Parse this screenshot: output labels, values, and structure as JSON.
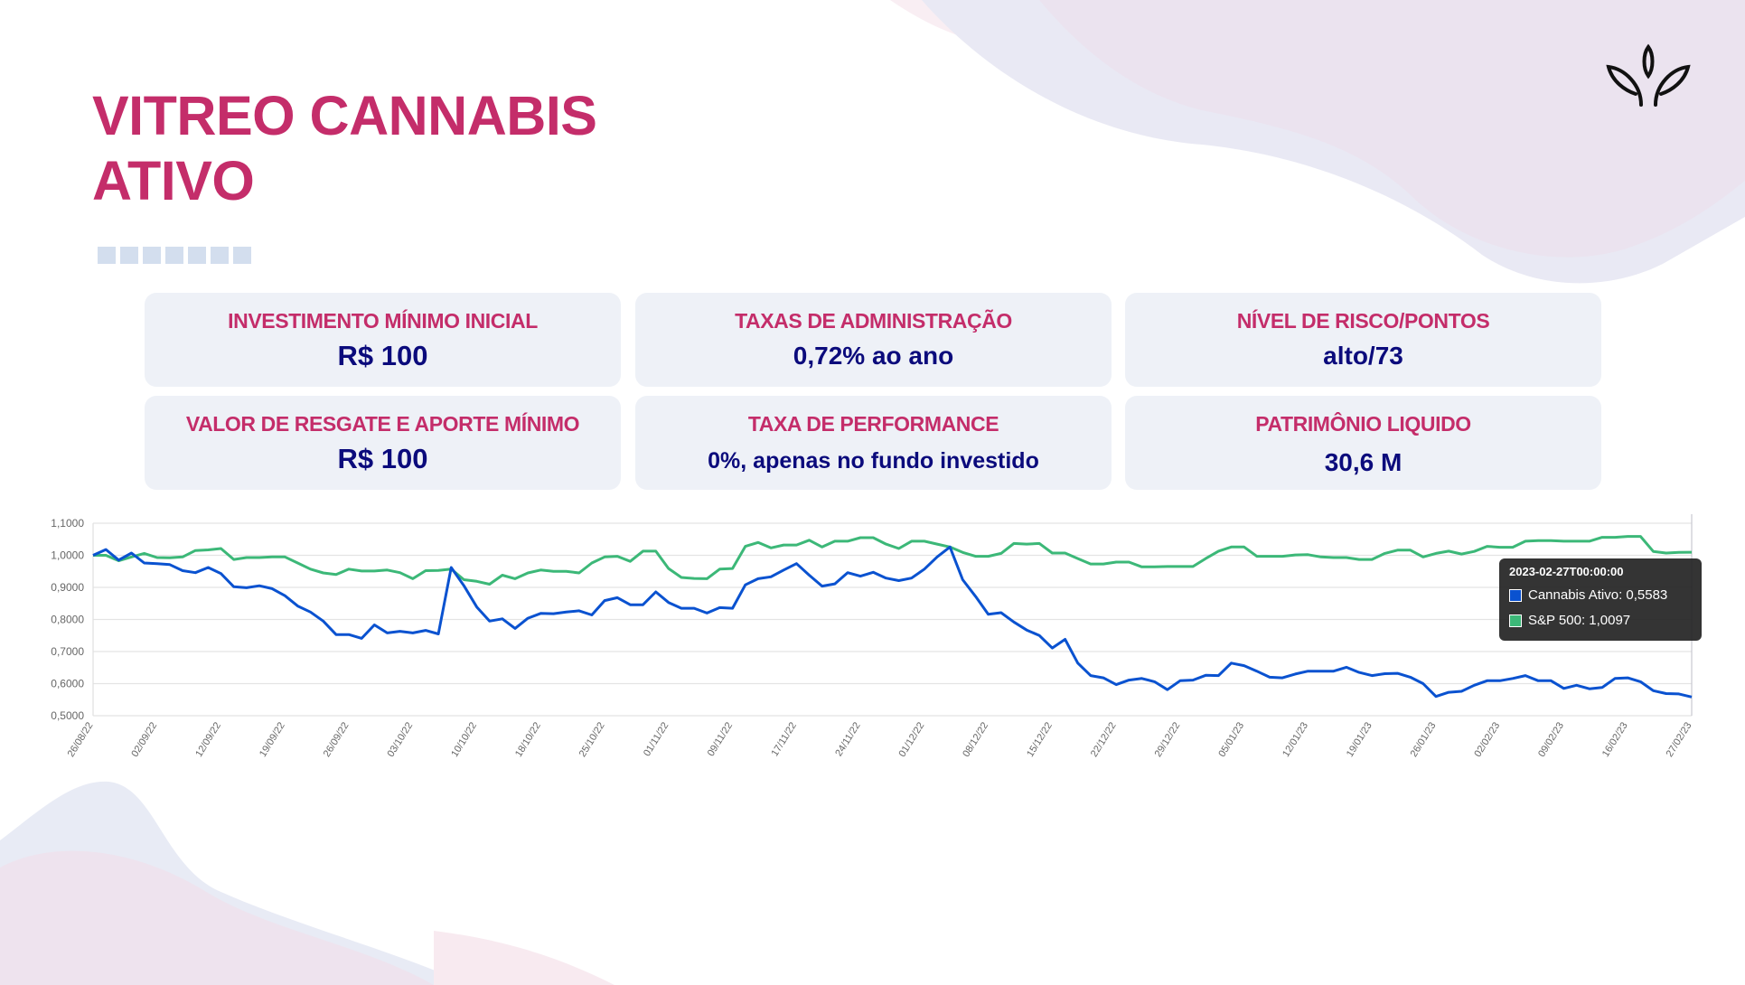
{
  "header": {
    "title_line1": "VITREO CANNABIS",
    "title_line2": "ATIVO"
  },
  "cards": [
    {
      "label": "INVESTIMENTO MÍNIMO  INICIAL",
      "value": "R$ 100"
    },
    {
      "label": "TAXAS DE ADMINISTRAÇÃO",
      "value": "0,72% ao ano"
    },
    {
      "label": "NÍVEL DE RISCO/PONTOS",
      "value": "alto/73"
    },
    {
      "label": "VALOR DE RESGATE E APORTE MÍNIMO",
      "value": "R$ 100"
    },
    {
      "label": "TAXA DE PERFORMANCE",
      "value": "0%, apenas no fundo investido"
    },
    {
      "label": "PATRIMÔNIO LIQUIDO",
      "value": "30,6 M"
    }
  ],
  "colors": {
    "accent": "#c42d6a",
    "value": "#0b0b7c",
    "card_bg": "#eef1f7",
    "cannabis": "#0a52d0",
    "sp500": "#3cb878"
  },
  "chart_data": {
    "type": "line",
    "title": "",
    "xlabel": "",
    "ylabel": "",
    "ylim": [
      0.5,
      1.1
    ],
    "yticks": [
      1.1,
      1.0,
      0.9,
      0.8,
      0.7,
      0.6,
      0.5
    ],
    "ytick_labels": [
      "1,1000",
      "1,0000",
      "0,9000",
      "0,8000",
      "0,7000",
      "0,6000",
      "0,5000"
    ],
    "grid": true,
    "x_tick_every": 5,
    "x_tick_labels": [
      "26/08/22",
      "02/09/22",
      "12/09/22",
      "19/09/22",
      "26/09/22",
      "03/10/22",
      "10/10/22",
      "18/10/22",
      "25/10/22",
      "01/11/22",
      "09/11/22",
      "17/11/22",
      "24/11/22",
      "01/12/22",
      "08/12/22",
      "15/12/22",
      "22/12/22",
      "29/12/22",
      "05/01/23",
      "12/01/23",
      "19/01/23",
      "26/01/23",
      "02/02/23",
      "09/02/23",
      "16/02/23",
      "27/02/23"
    ],
    "series": [
      {
        "name": "Cannabis Ativo",
        "color": "#0a52d0",
        "values": [
          1.0,
          1.018,
          0.985,
          1.007,
          0.976,
          0.974,
          0.971,
          0.952,
          0.946,
          0.962,
          0.943,
          0.902,
          0.899,
          0.905,
          0.896,
          0.874,
          0.842,
          0.823,
          0.795,
          0.753,
          0.753,
          0.741,
          0.783,
          0.758,
          0.763,
          0.758,
          0.766,
          0.755,
          0.962,
          0.905,
          0.839,
          0.795,
          0.802,
          0.772,
          0.804,
          0.819,
          0.818,
          0.823,
          0.827,
          0.814,
          0.859,
          0.868,
          0.846,
          0.846,
          0.886,
          0.853,
          0.835,
          0.835,
          0.82,
          0.837,
          0.835,
          0.908,
          0.927,
          0.933,
          0.954,
          0.974,
          0.938,
          0.904,
          0.911,
          0.946,
          0.935,
          0.947,
          0.929,
          0.921,
          0.929,
          0.957,
          0.995,
          1.026,
          0.924,
          0.872,
          0.816,
          0.821,
          0.792,
          0.767,
          0.75,
          0.711,
          0.738,
          0.664,
          0.625,
          0.618,
          0.597,
          0.611,
          0.616,
          0.606,
          0.581,
          0.609,
          0.611,
          0.626,
          0.625,
          0.664,
          0.656,
          0.639,
          0.62,
          0.618,
          0.63,
          0.639,
          0.639,
          0.639,
          0.651,
          0.635,
          0.625,
          0.631,
          0.632,
          0.62,
          0.6,
          0.56,
          0.573,
          0.576,
          0.595,
          0.609,
          0.609,
          0.616,
          0.625,
          0.609,
          0.609,
          0.585,
          0.595,
          0.584,
          0.588,
          0.616,
          0.618,
          0.606,
          0.578,
          0.569,
          0.568,
          0.5583
        ]
      },
      {
        "name": "S&P 500",
        "color": "#3cb878",
        "values": [
          1.0,
          1.0,
          0.983,
          0.995,
          1.006,
          0.993,
          0.992,
          0.995,
          1.015,
          1.017,
          1.021,
          0.987,
          0.993,
          0.993,
          0.995,
          0.995,
          0.976,
          0.957,
          0.945,
          0.94,
          0.957,
          0.951,
          0.951,
          0.954,
          0.946,
          0.927,
          0.952,
          0.953,
          0.957,
          0.924,
          0.919,
          0.91,
          0.938,
          0.927,
          0.945,
          0.954,
          0.95,
          0.95,
          0.945,
          0.976,
          0.995,
          0.997,
          0.981,
          1.013,
          1.013,
          0.959,
          0.931,
          0.928,
          0.927,
          0.957,
          0.959,
          1.028,
          1.04,
          1.023,
          1.032,
          1.032,
          1.047,
          1.026,
          1.044,
          1.044,
          1.055,
          1.055,
          1.035,
          1.021,
          1.044,
          1.044,
          1.035,
          1.026,
          1.009,
          0.997,
          0.997,
          1.006,
          1.037,
          1.035,
          1.037,
          1.007,
          1.007,
          0.99,
          0.973,
          0.973,
          0.979,
          0.979,
          0.964,
          0.964,
          0.965,
          0.965,
          0.965,
          0.99,
          1.013,
          1.026,
          1.026,
          0.997,
          0.997,
          0.997,
          1.001,
          1.002,
          0.995,
          0.993,
          0.993,
          0.987,
          0.987,
          1.006,
          1.016,
          1.016,
          0.995,
          1.006,
          1.013,
          1.004,
          1.012,
          1.028,
          1.025,
          1.025,
          1.044,
          1.046,
          1.046,
          1.044,
          1.044,
          1.044,
          1.056,
          1.056,
          1.059,
          1.059,
          1.012,
          1.007,
          1.009,
          1.0097
        ]
      }
    ],
    "legend": "tooltip",
    "tooltip": {
      "title": "2023-02-27T00:00:00",
      "items": [
        "Cannabis Ativo: 0,5583",
        "S&P 500: 1,0097"
      ]
    }
  }
}
